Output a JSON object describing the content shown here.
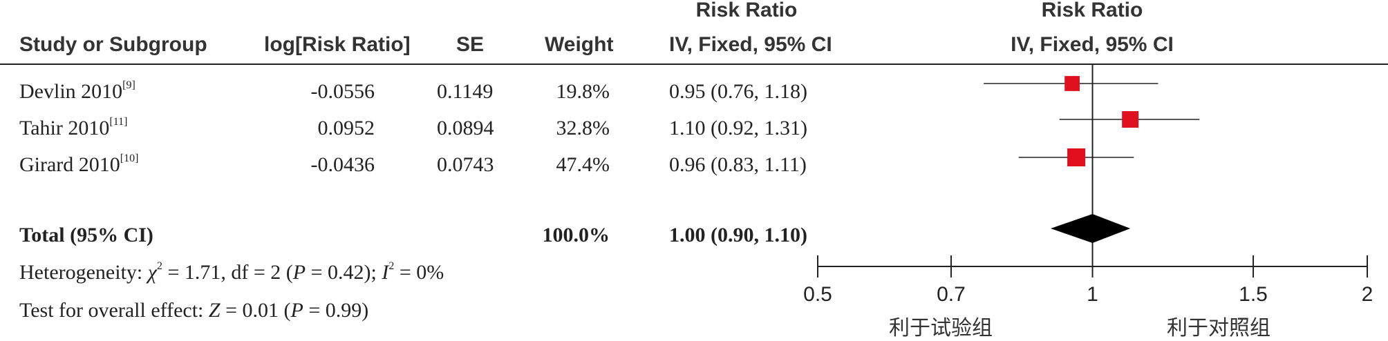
{
  "header": {
    "col_study": "Study or Subgroup",
    "col_log": "log[Risk Ratio]",
    "col_se": "SE",
    "col_weight": "Weight",
    "col_ci_top": "Risk Ratio",
    "col_ci_bottom": "IV, Fixed, 95% CI",
    "plot_top": "Risk Ratio",
    "plot_bottom": "IV, Fixed, 95% CI"
  },
  "studies": [
    {
      "name": "Devlin 2010",
      "ref": "[9]",
      "log_rr": "-0.0556",
      "se": "0.1149",
      "weight": "19.8%",
      "ci_text": "0.95 (0.76, 1.18)"
    },
    {
      "name": "Tahir 2010",
      "ref": "[11]",
      "log_rr": "0.0952",
      "se": "0.0894",
      "weight": "32.8%",
      "ci_text": "1.10 (0.92, 1.31)"
    },
    {
      "name": "Girard 2010",
      "ref": "[10]",
      "log_rr": "-0.0436",
      "se": "0.0743",
      "weight": "47.4%",
      "ci_text": "0.96 (0.83, 1.11)"
    }
  ],
  "total": {
    "label": "Total (95% CI)",
    "weight": "100.0%",
    "ci_text": "1.00 (0.90, 1.10)"
  },
  "heterogeneity": {
    "prefix": "Heterogeneity: ",
    "chi": "χ",
    "sup2": "2",
    "chi_rest": " = 1.71, df = 2 (",
    "p": "P",
    "p_rest": " = 0.42); ",
    "i": "I",
    "i_rest": " = 0%"
  },
  "overall": {
    "prefix": "Test for overall effect: ",
    "z": "Z",
    "z_rest": " = 0.01 (",
    "p": "P",
    "p_rest": " = 0.99)"
  },
  "favours_left": "利于试验组",
  "favours_right": "利于对照组",
  "colors": {
    "marker": "#e0101f",
    "diamond": "#000000",
    "line": "#222222"
  },
  "chart_data": {
    "type": "forest",
    "scale": "log",
    "xlim": [
      0.5,
      2
    ],
    "ticks": [
      "0.5",
      "0.7",
      "1",
      "1.5",
      "2"
    ],
    "tick_values": [
      0.5,
      0.7,
      1,
      1.5,
      2
    ],
    "reference_line": 1,
    "studies": [
      {
        "name": "Devlin 2010",
        "rr": 0.95,
        "lower": 0.76,
        "upper": 1.18,
        "weight": 19.8
      },
      {
        "name": "Tahir 2010",
        "rr": 1.1,
        "lower": 0.92,
        "upper": 1.31,
        "weight": 32.8
      },
      {
        "name": "Girard 2010",
        "rr": 0.96,
        "lower": 0.83,
        "upper": 1.11,
        "weight": 47.4
      }
    ],
    "pooled": {
      "rr": 1.0,
      "lower": 0.9,
      "upper": 1.1
    }
  }
}
